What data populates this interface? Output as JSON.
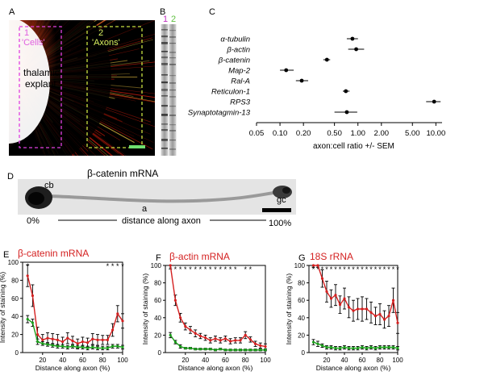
{
  "panel_letters": {
    "a": "A",
    "b": "B",
    "c": "C",
    "d": "D",
    "e": "E",
    "f": "F",
    "g": "G"
  },
  "panel_a": {
    "cells_number": "1",
    "cells_label": "'Cells'",
    "axons_number": "2",
    "axons_label": "'Axons'",
    "explant_line1": "thalamic",
    "explant_line2": "explant"
  },
  "panel_b": {
    "lane1": "1",
    "lane2": "2"
  },
  "panel_c": {
    "xlabel": "axon:cell ratio +/- SEM",
    "xticks": [
      "0.05",
      "0.10",
      "0.20",
      "0.50",
      "1.00",
      "2.00",
      "5.00",
      "10.00"
    ],
    "genes": [
      "α-tubulin",
      "β-actin",
      "β-catenin",
      "Map-2",
      "Ral-A",
      "Reticulon-1",
      "RPS3",
      "Synaptotagmin-13"
    ]
  },
  "panel_d": {
    "title": "β-catenin mRNA",
    "cb": "cb",
    "a": "a",
    "gc": "gc",
    "start": "0%",
    "middle": "distance along axon",
    "end": "100%"
  },
  "chart_common": {
    "xlabel": "Distance along axon (%)",
    "ylabel": "Intensity of staining (%)",
    "xticks": [
      "20",
      "40",
      "60",
      "80",
      "100"
    ],
    "yticks": [
      "0",
      "20",
      "40",
      "60",
      "80",
      "100"
    ]
  },
  "chart_data": [
    {
      "type": "line",
      "title": "β-catenin mRNA",
      "xlabel": "Distance along axon (%)",
      "ylabel": "Intensity of staining (%)",
      "xlim": [
        0,
        100
      ],
      "ylim": [
        0,
        100
      ],
      "x": [
        5,
        10,
        15,
        20,
        25,
        30,
        35,
        40,
        45,
        50,
        55,
        60,
        65,
        70,
        75,
        80,
        85,
        90,
        95,
        100
      ],
      "series": [
        {
          "color": "#d42020",
          "values": [
            85,
            63,
            20,
            14,
            16,
            15,
            14,
            12,
            16,
            13,
            10,
            12,
            11,
            15,
            14,
            14,
            14,
            25,
            43,
            35
          ],
          "errors": [
            12,
            12,
            8,
            6,
            6,
            6,
            6,
            5,
            6,
            5,
            5,
            5,
            5,
            6,
            6,
            5,
            5,
            7,
            9,
            8
          ]
        },
        {
          "color": "#1a9e1a",
          "values": [
            37,
            33,
            12,
            10,
            9,
            8,
            7,
            7,
            6,
            7,
            6,
            6,
            5,
            6,
            5,
            5,
            5,
            7,
            7,
            6
          ],
          "errors": [
            4,
            4,
            3,
            2,
            2,
            2,
            2,
            2,
            2,
            2,
            2,
            2,
            2,
            2,
            2,
            2,
            2,
            2,
            2,
            2
          ]
        }
      ],
      "asterisks": [
        5,
        85,
        90,
        95,
        100
      ]
    },
    {
      "type": "line",
      "title": "β-actin mRNA",
      "xlabel": "Distance along axon (%)",
      "ylabel": "Intensity of staining (%)",
      "xlim": [
        0,
        100
      ],
      "ylim": [
        0,
        100
      ],
      "x": [
        5,
        10,
        15,
        20,
        25,
        30,
        35,
        40,
        45,
        50,
        55,
        60,
        65,
        70,
        75,
        80,
        85,
        90,
        95,
        100
      ],
      "series": [
        {
          "color": "#d42020",
          "values": [
            100,
            60,
            40,
            30,
            26,
            22,
            19,
            17,
            14,
            16,
            14,
            16,
            13,
            14,
            14,
            20,
            15,
            10,
            8,
            7
          ],
          "errors": [
            4,
            6,
            5,
            4,
            4,
            4,
            3,
            3,
            3,
            3,
            3,
            3,
            3,
            3,
            3,
            4,
            3,
            3,
            3,
            3
          ]
        },
        {
          "color": "#1a9e1a",
          "values": [
            20,
            12,
            7,
            5,
            5,
            4,
            4,
            4,
            4,
            3,
            4,
            3,
            3,
            3,
            3,
            3,
            3,
            3,
            3,
            3
          ],
          "errors": [
            3,
            2,
            2,
            1,
            1,
            1,
            1,
            1,
            1,
            1,
            1,
            1,
            1,
            1,
            1,
            1,
            1,
            1,
            1,
            1
          ]
        }
      ],
      "asterisks": [
        5,
        10,
        15,
        20,
        25,
        30,
        35,
        40,
        45,
        50,
        55,
        60,
        65,
        70,
        80,
        85
      ]
    },
    {
      "type": "line",
      "title": "18S rRNA",
      "xlabel": "Distance along axon (%)",
      "ylabel": "Intensity of staining (%)",
      "xlim": [
        0,
        100
      ],
      "ylim": [
        0,
        100
      ],
      "x": [
        5,
        10,
        15,
        20,
        25,
        30,
        35,
        40,
        45,
        50,
        55,
        60,
        65,
        70,
        75,
        80,
        85,
        90,
        95,
        100
      ],
      "series": [
        {
          "color": "#d42020",
          "values": [
            100,
            100,
            85,
            70,
            62,
            66,
            55,
            62,
            52,
            48,
            50,
            50,
            50,
            46,
            42,
            44,
            38,
            42,
            60,
            34
          ],
          "errors": [
            2,
            2,
            10,
            12,
            10,
            12,
            10,
            12,
            12,
            12,
            12,
            14,
            12,
            12,
            10,
            12,
            10,
            12,
            14,
            12
          ]
        },
        {
          "color": "#1a9e1a",
          "values": [
            12,
            10,
            8,
            6,
            6,
            5,
            5,
            6,
            5,
            5,
            5,
            6,
            5,
            6,
            5,
            6,
            6,
            6,
            6,
            5
          ],
          "errors": [
            3,
            3,
            2,
            2,
            2,
            2,
            2,
            2,
            2,
            2,
            2,
            2,
            2,
            2,
            2,
            2,
            2,
            2,
            2,
            2
          ]
        }
      ],
      "asterisks": [
        5,
        10,
        15,
        20,
        25,
        30,
        35,
        40,
        45,
        50,
        55,
        60,
        65,
        70,
        75,
        80,
        85,
        90,
        95,
        100
      ]
    },
    {
      "type": "scatter",
      "xlabel": "axon:cell ratio +/- SEM",
      "xscale": "log",
      "xlim": [
        0.05,
        12
      ],
      "categories": [
        "α-tubulin",
        "β-actin",
        "β-catenin",
        "Map-2",
        "Ral-A",
        "Reticulon-1",
        "RPS3",
        "Synaptotagmin-13"
      ],
      "values": [
        0.85,
        0.95,
        0.4,
        0.12,
        0.19,
        0.7,
        9.5,
        0.72
      ],
      "error_low": [
        0.72,
        0.75,
        0.36,
        0.1,
        0.16,
        0.64,
        7.5,
        0.5
      ],
      "error_high": [
        1.0,
        1.2,
        0.44,
        0.15,
        0.23,
        0.78,
        11.5,
        0.98
      ]
    }
  ]
}
